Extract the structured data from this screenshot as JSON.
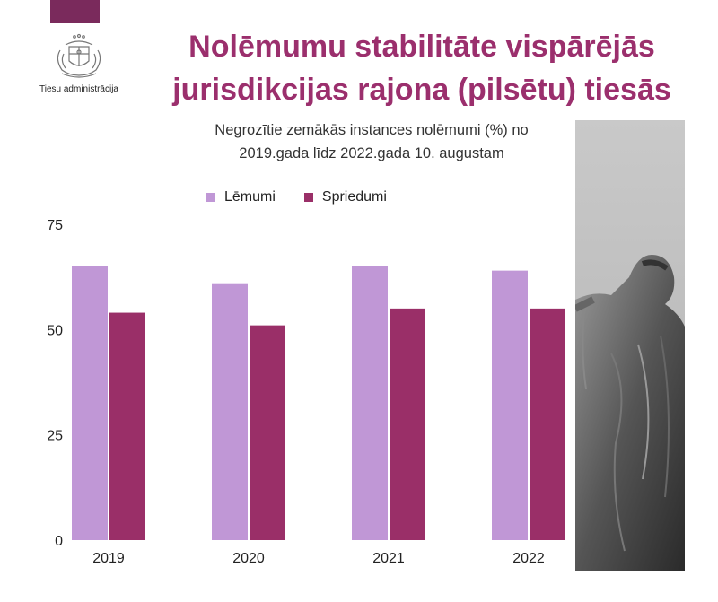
{
  "header": {
    "org_name": "Tiesu administrācija",
    "title_line1": "Nolēmumu stabilitāte vispārējās",
    "title_line2": "jurisdikcijas rajona (pilsētu) tiesās"
  },
  "colors": {
    "brand": "#7a2a5c",
    "title": "#9b2f6d",
    "lemumi": "#c097d6",
    "spriedumi": "#9a2f68"
  },
  "chart_data": {
    "type": "bar",
    "title": "",
    "subtitle_line1": "Negrozītie zemākās instances nolēmumi (%) no",
    "subtitle_line2": "2019.gada līdz 2022.gada 10. augustam",
    "categories": [
      "2019",
      "2020",
      "2021",
      "2022"
    ],
    "series": [
      {
        "name": "Lēmumi",
        "values": [
          65,
          61,
          65,
          64
        ]
      },
      {
        "name": "Spriedumi",
        "values": [
          54,
          51,
          55,
          55
        ]
      }
    ],
    "ylim": [
      0,
      75
    ],
    "yticks": [
      0,
      25,
      50,
      75
    ],
    "xlabel": "",
    "ylabel": "",
    "grid": false,
    "legend": "top"
  }
}
